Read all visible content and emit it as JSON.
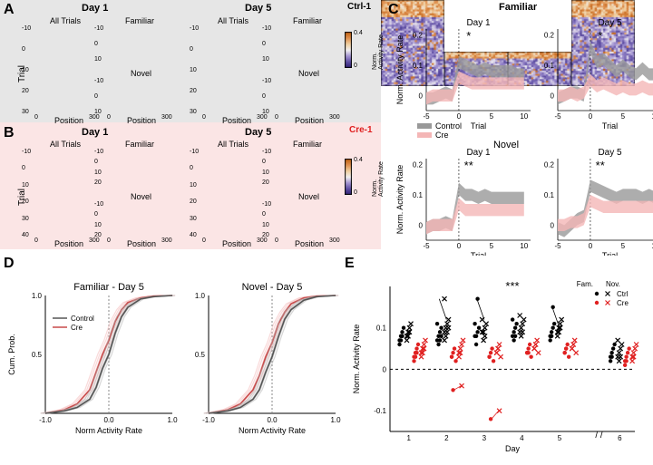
{
  "labels": {
    "A": "A",
    "B": "B",
    "C": "C",
    "D": "D",
    "E": "E"
  },
  "panel_bg": {
    "A_color": "#e6e6e6",
    "B_color": "#fbe5e5"
  },
  "A": {
    "title_d1": "Day 1",
    "title_d5": "Day 5",
    "condition": "Ctrl-1",
    "sub_all": "All Trials",
    "sub_fam": "Familiar",
    "sub_nov": "Novel",
    "ylabel": "Trial",
    "xlabel": "Position",
    "y_ticks_all": [
      "-10",
      "0",
      "10",
      "20",
      "30"
    ],
    "y_ticks_small": [
      "-10",
      "0",
      "10"
    ],
    "x_ticks": [
      "0",
      "300"
    ],
    "cmap_label": "Norm.\nActivity Rate",
    "cmap_ticks": [
      "0",
      "0.4"
    ],
    "cmap_stops": [
      "#2a1a6b",
      "#5a4aa0",
      "#a090d0",
      "#f0eef0",
      "#f0d0a0",
      "#e09050",
      "#c06010"
    ]
  },
  "B": {
    "title_d1": "Day 1",
    "title_d5": "Day 5",
    "condition": "Cre-1",
    "y_ticks_all": [
      "-10",
      "0",
      "10",
      "20",
      "30",
      "40"
    ],
    "y_ticks_small": [
      "-10",
      "0",
      "10",
      "20"
    ]
  },
  "C": {
    "fam_title": "Familiar",
    "nov_title": "Novel",
    "d1": "Day 1",
    "d5": "Day 5",
    "ylabel": "Norm. Activity Rate",
    "xlabel": "Trial",
    "sig_fam_d1": "*",
    "sig_fam_d5": "*",
    "sig_nov_d1": "**",
    "sig_nov_d5": "**",
    "legend_control": "Control",
    "legend_cre": "Cre",
    "control_color": "#999999",
    "cre_color": "#f4b6b6",
    "y_ticks": [
      "0",
      "0.1",
      "0.2"
    ],
    "x_ticks": [
      "-5",
      "0",
      "5",
      "10"
    ],
    "data_fam_d1_ctrl": [
      -0.01,
      -0.01,
      0,
      0.01,
      0,
      0.11,
      0.1,
      0.09,
      0.08,
      0.09,
      0.08,
      0.08,
      0.08,
      0.08,
      0.07,
      0.07
    ],
    "data_fam_d1_cre": [
      -0.01,
      0,
      0,
      0,
      0,
      0.06,
      0.05,
      0.04,
      0.04,
      0.04,
      0.04,
      0.04,
      0.04,
      0.04,
      0.04,
      0.04
    ],
    "data_fam_d5_ctrl": [
      -0.01,
      0,
      0.01,
      0.01,
      0,
      0.16,
      0.11,
      0.12,
      0.1,
      0.08,
      0.1,
      0.08,
      0.07,
      0.09,
      0.07,
      0.07
    ],
    "data_fam_d5_cre": [
      0,
      0,
      0.01,
      0,
      0.01,
      0.05,
      0.03,
      0.04,
      0.03,
      0.02,
      0.03,
      0.02,
      0.02,
      0.03,
      0.02,
      0.02
    ],
    "data_nov_d1_ctrl": [
      -0.01,
      0,
      0,
      0.01,
      0,
      0.12,
      0.1,
      0.1,
      0.09,
      0.1,
      0.09,
      0.09,
      0.09,
      0.09,
      0.09,
      0.09
    ],
    "data_nov_d1_cre": [
      -0.01,
      0,
      0,
      0,
      0,
      0.07,
      0.05,
      0.05,
      0.05,
      0.05,
      0.05,
      0.05,
      0.05,
      0.05,
      0.05,
      0.05
    ],
    "data_nov_d5_ctrl": [
      -0.01,
      -0.02,
      0,
      0.02,
      0.03,
      0.13,
      0.12,
      0.11,
      0.1,
      0.09,
      0.1,
      0.1,
      0.1,
      0.09,
      0.1,
      0.09
    ],
    "data_nov_d5_cre": [
      0,
      0,
      0.01,
      0.01,
      0.02,
      0.08,
      0.07,
      0.06,
      0.06,
      0.06,
      0.06,
      0.06,
      0.06,
      0.06,
      0.06,
      0.06
    ],
    "band_half": 0.02
  },
  "D": {
    "title_fam": "Familiar - Day 5",
    "title_nov": "Novel - Day 5",
    "ylabel": "Cum. Prob.",
    "xlabel": "Norm Activity Rate",
    "xlim": [
      -1.0,
      1.0
    ],
    "x_ticks": [
      "-1.0",
      "0.0",
      "1.0"
    ],
    "y_ticks": [
      "0.5",
      "1.0"
    ],
    "legend_control": "Control",
    "legend_cre": "Cre",
    "ctrl_dark": "#555555",
    "ctrl_band": "#b0b0b0",
    "cre_dark": "#c94a4a",
    "cre_band": "#f4b6b6",
    "fam": {
      "ctrl_x": [
        -1,
        -0.7,
        -0.5,
        -0.3,
        -0.2,
        -0.1,
        0,
        0.1,
        0.2,
        0.3,
        0.5,
        0.7,
        1.0
      ],
      "ctrl_y": [
        0,
        0.02,
        0.05,
        0.12,
        0.22,
        0.38,
        0.5,
        0.68,
        0.82,
        0.9,
        0.97,
        0.99,
        1.0
      ],
      "cre_x": [
        -1,
        -0.7,
        -0.5,
        -0.3,
        -0.2,
        -0.1,
        0,
        0.1,
        0.2,
        0.3,
        0.5,
        0.7,
        1.0
      ],
      "cre_y": [
        0,
        0.03,
        0.08,
        0.2,
        0.35,
        0.5,
        0.62,
        0.78,
        0.88,
        0.94,
        0.98,
        0.995,
        1.0
      ]
    },
    "nov": {
      "ctrl_x": [
        -1,
        -0.7,
        -0.5,
        -0.3,
        -0.2,
        -0.1,
        0,
        0.1,
        0.2,
        0.3,
        0.5,
        0.7,
        1.0
      ],
      "ctrl_y": [
        0,
        0.02,
        0.05,
        0.12,
        0.2,
        0.35,
        0.48,
        0.65,
        0.8,
        0.88,
        0.96,
        0.99,
        1.0
      ],
      "cre_x": [
        -1,
        -0.7,
        -0.5,
        -0.3,
        -0.2,
        -0.1,
        0,
        0.1,
        0.2,
        0.3,
        0.5,
        0.7,
        1.0
      ],
      "cre_y": [
        0,
        0.03,
        0.08,
        0.2,
        0.32,
        0.48,
        0.6,
        0.76,
        0.86,
        0.93,
        0.98,
        0.995,
        1.0
      ]
    }
  },
  "E": {
    "ylabel": "Norm. Activity Rate",
    "xlabel": "Day",
    "sig": "***",
    "days": [
      "1",
      "2",
      "3",
      "4",
      "5",
      "6"
    ],
    "y_ticks": [
      "-0.1",
      "0",
      "0.1"
    ],
    "legend": {
      "fam": "Fam.",
      "nov": "Nov.",
      "ctrl": "Ctrl",
      "cre": "Cre"
    },
    "ctrl_color": "#000000",
    "cre_color": "#e02020",
    "ctrl_fam": [
      [
        0.07,
        0.08,
        0.09,
        0.1,
        0.06,
        0.07,
        0.08
      ],
      [
        0.07,
        0.08,
        0.09,
        0.1,
        0.11,
        0.06,
        0.07,
        0.08
      ],
      [
        0.08,
        0.08,
        0.09,
        0.1,
        0.11,
        0.06,
        0.17
      ],
      [
        0.08,
        0.09,
        0.1,
        0.11,
        0.12,
        0.07,
        0.08
      ],
      [
        0.08,
        0.09,
        0.1,
        0.11,
        0.07,
        0.08,
        0.15
      ],
      [
        0.03,
        0.04,
        0.05,
        0.06,
        0.02,
        0.03
      ]
    ],
    "ctrl_nov": [
      [
        0.08,
        0.09,
        0.1,
        0.11,
        0.07,
        0.08,
        0.09
      ],
      [
        0.09,
        0.1,
        0.11,
        0.12,
        0.07,
        0.08,
        0.09,
        0.1,
        0.17
      ],
      [
        0.09,
        0.09,
        0.1,
        0.11,
        0.12,
        0.07,
        0.08
      ],
      [
        0.09,
        0.1,
        0.11,
        0.12,
        0.13,
        0.08,
        0.09
      ],
      [
        0.09,
        0.1,
        0.11,
        0.12,
        0.08,
        0.09,
        0.1
      ],
      [
        0.03,
        0.04,
        0.05,
        0.06,
        0.07,
        0.02,
        0.03
      ]
    ],
    "cre_fam": [
      [
        0.03,
        0.04,
        0.05,
        0.06,
        0.02,
        0.03,
        0.04
      ],
      [
        0.03,
        0.04,
        0.05,
        0.02,
        0.03,
        -0.05
      ],
      [
        0.03,
        0.04,
        0.05,
        0.02,
        0.03,
        -0.12
      ],
      [
        0.04,
        0.05,
        0.06,
        0.03,
        0.04,
        0.04
      ],
      [
        0.04,
        0.05,
        0.06,
        0.03,
        0.04,
        0.05
      ],
      [
        0.02,
        0.03,
        0.04,
        0.05,
        0.01,
        0.02
      ]
    ],
    "cre_nov": [
      [
        0.04,
        0.05,
        0.06,
        0.07,
        0.03,
        0.04,
        0.05
      ],
      [
        0.04,
        0.05,
        0.06,
        0.07,
        0.03,
        0.04,
        -0.04
      ],
      [
        0.04,
        0.05,
        0.06,
        0.03,
        0.04,
        0.05,
        -0.1
      ],
      [
        0.05,
        0.06,
        0.07,
        0.04,
        0.05,
        0.06
      ],
      [
        0.05,
        0.06,
        0.07,
        0.04,
        0.05,
        0.06
      ],
      [
        0.03,
        0.04,
        0.05,
        0.06,
        0.02,
        0.03
      ]
    ]
  }
}
